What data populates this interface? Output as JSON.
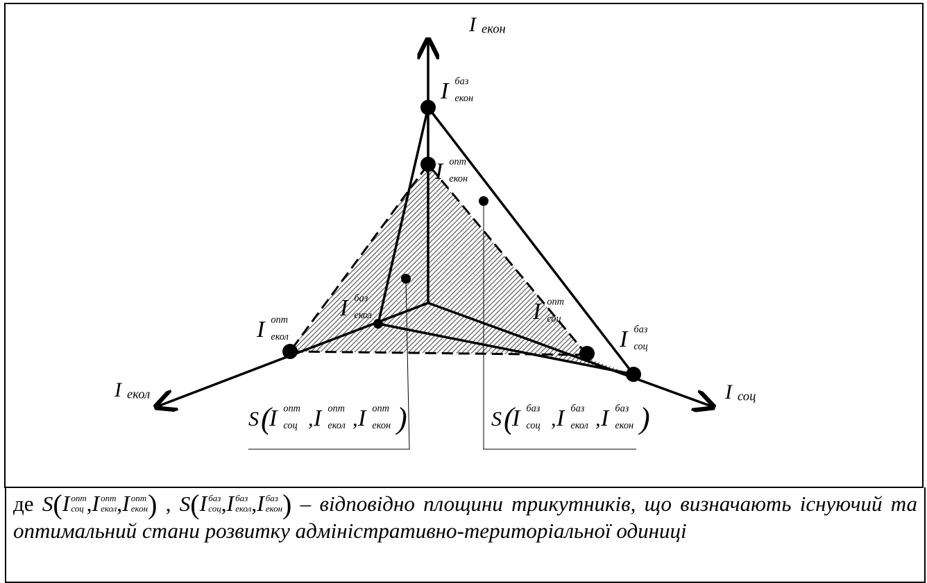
{
  "axes": [
    {
      "base": "I",
      "sub": "екон"
    },
    {
      "base": "I",
      "sub": "екол"
    },
    {
      "base": "I",
      "sub": "соц"
    }
  ],
  "points": [
    {
      "base": "I",
      "sup": "баз",
      "sub": "екон"
    },
    {
      "base": "I",
      "sup": "опт",
      "sub": "екон"
    },
    {
      "base": "I",
      "sup": "опт",
      "sub": "екол"
    },
    {
      "base": "I",
      "sup": "баз",
      "sub": "екол"
    },
    {
      "base": "I",
      "sup": "опт",
      "sub": "соц"
    },
    {
      "base": "I",
      "sup": "баз",
      "sub": "соц"
    }
  ],
  "areas": [
    {
      "prefix": "S",
      "open": "(",
      "sep": ",",
      "close": ")",
      "terms": [
        {
          "base": "I",
          "sup": "опт",
          "sub": "соц"
        },
        {
          "base": "I",
          "sup": "опт",
          "sub": "екол"
        },
        {
          "base": "I",
          "sup": "опт",
          "sub": "екон"
        }
      ]
    },
    {
      "prefix": "S",
      "open": "(",
      "sep": ",",
      "close": ")",
      "terms": [
        {
          "base": "I",
          "sup": "баз",
          "sub": "соц"
        },
        {
          "base": "I",
          "sup": "баз",
          "sub": "екол"
        },
        {
          "base": "I",
          "sup": "баз",
          "sub": "екон"
        }
      ]
    }
  ],
  "caption": {
    "lead": "де",
    "separator": ",",
    "dash": "–",
    "text": "відповідно площини трикутників, що визначають існуючий та оптимальний стани розвитку адміністративно-територіальної одиниці"
  }
}
